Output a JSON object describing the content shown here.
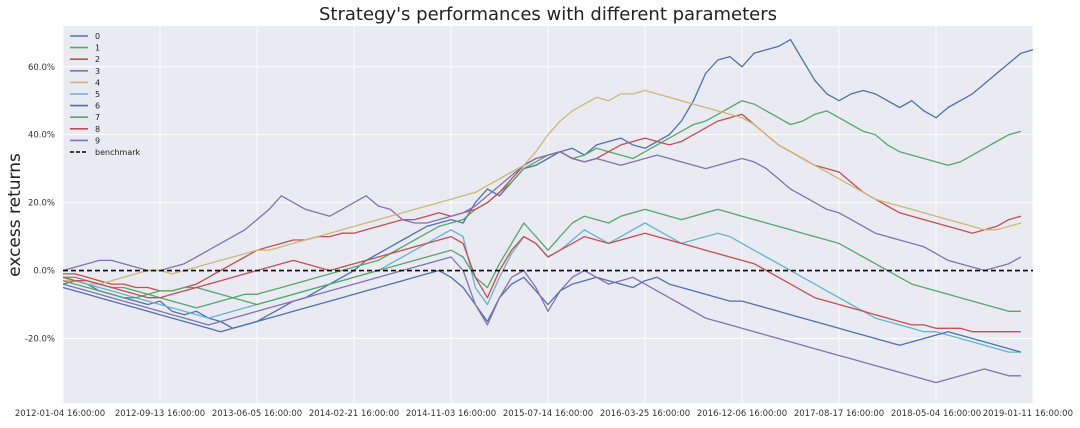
{
  "chart_data": {
    "type": "line",
    "title": "Strategy's performances with different parameters",
    "xlabel": "",
    "ylabel": "excess returns",
    "ylim": [
      -39,
      72
    ],
    "y_ticks": [
      -20,
      0,
      20,
      40,
      60
    ],
    "y_tick_labels": [
      "-20.0%",
      "0.0%",
      "20.0%",
      "40.0%",
      "60.0%"
    ],
    "x_count": 80,
    "x_ticks": [
      {
        "index": 0,
        "label": "2012-01-04 16:00:00"
      },
      {
        "index": 8,
        "label": "2012-09-13 16:00:00"
      },
      {
        "index": 16,
        "label": "2013-06-05 16:00:00"
      },
      {
        "index": 24,
        "label": "2014-02-21 16:00:00"
      },
      {
        "index": 32,
        "label": "2014-11-03 16:00:00"
      },
      {
        "index": 40,
        "label": "2015-07-14 16:00:00"
      },
      {
        "index": 48,
        "label": "2016-03-25 16:00:00"
      },
      {
        "index": 56,
        "label": "2016-12-06 16:00:00"
      },
      {
        "index": 64,
        "label": "2017-08-17 16:00:00"
      },
      {
        "index": 72,
        "label": "2018-05-04 16:00:00"
      },
      {
        "index": 80,
        "label": "2019-01-11 16:00:00"
      }
    ],
    "grid": true,
    "legend_position": "top-left",
    "series": [
      {
        "name": "0",
        "color": "#4c72b0",
        "values": [
          -4,
          -3,
          -4,
          -6,
          -7,
          -8,
          -9,
          -10,
          -9,
          -12,
          -13,
          -12,
          -14,
          -15,
          -17,
          -16,
          -15,
          -13,
          -11,
          -9,
          -8,
          -6,
          -4,
          -2,
          0,
          3,
          5,
          7,
          9,
          11,
          13,
          14,
          15,
          14,
          20,
          24,
          22,
          26,
          30,
          31,
          33,
          35,
          36,
          34,
          37,
          38,
          39,
          37,
          36,
          38,
          40,
          44,
          50,
          58,
          62,
          63,
          60,
          64,
          65,
          66,
          68,
          62,
          56,
          52,
          50,
          52,
          53,
          52,
          50,
          48,
          50,
          47,
          45,
          48,
          50,
          52,
          55,
          58,
          61,
          64,
          65
        ]
      },
      {
        "name": "1",
        "color": "#55a868",
        "values": [
          -2,
          -2,
          -3,
          -4,
          -5,
          -5,
          -6,
          -7,
          -8,
          -9,
          -10,
          -11,
          -10,
          -9,
          -8,
          -7,
          -7,
          -6,
          -5,
          -4,
          -3,
          -2,
          -1,
          0,
          1,
          2,
          3,
          5,
          7,
          9,
          11,
          13,
          14,
          15,
          18,
          20,
          23,
          26,
          30,
          32,
          34,
          35,
          33,
          34,
          36,
          35,
          34,
          33,
          35,
          37,
          39,
          41,
          43,
          44,
          46,
          48,
          50,
          49,
          47,
          45,
          43,
          44,
          46,
          47,
          45,
          43,
          41,
          40,
          37,
          35,
          34,
          33,
          32,
          31,
          32,
          34,
          36,
          38,
          40,
          41
        ]
      },
      {
        "name": "2",
        "color": "#c44e52",
        "values": [
          -1,
          -1,
          -2,
          -3,
          -4,
          -4,
          -5,
          -5,
          -6,
          -6,
          -5,
          -4,
          -2,
          0,
          2,
          4,
          6,
          7,
          8,
          9,
          9,
          10,
          10,
          11,
          11,
          12,
          13,
          14,
          15,
          15,
          16,
          17,
          16,
          17,
          18,
          20,
          23,
          27,
          31,
          33,
          34,
          35,
          33,
          32,
          33,
          35,
          37,
          38,
          39,
          38,
          37,
          38,
          40,
          42,
          44,
          45,
          46,
          43,
          40,
          37,
          35,
          33,
          31,
          30,
          29,
          26,
          23,
          21,
          19,
          17,
          16,
          15,
          14,
          13,
          12,
          11,
          12,
          13,
          15,
          16
        ]
      },
      {
        "name": "3",
        "color": "#8172b2",
        "values": [
          0,
          1,
          2,
          3,
          3,
          2,
          1,
          0,
          0,
          1,
          2,
          4,
          6,
          8,
          10,
          12,
          15,
          18,
          22,
          20,
          18,
          17,
          16,
          18,
          20,
          22,
          19,
          18,
          15,
          14,
          14,
          15,
          16,
          17,
          19,
          22,
          25,
          28,
          31,
          33,
          34,
          35,
          33,
          32,
          33,
          32,
          31,
          32,
          33,
          34,
          33,
          32,
          31,
          30,
          31,
          32,
          33,
          32,
          30,
          27,
          24,
          22,
          20,
          18,
          17,
          15,
          13,
          11,
          10,
          9,
          8,
          7,
          5,
          3,
          2,
          1,
          0,
          1,
          2,
          4
        ]
      },
      {
        "name": "4",
        "color": "#ccb974",
        "values": [
          -3,
          -3,
          -4,
          -4,
          -3,
          -2,
          -1,
          0,
          0,
          -1,
          0,
          1,
          2,
          3,
          4,
          5,
          6,
          6,
          7,
          8,
          9,
          10,
          11,
          12,
          13,
          14,
          15,
          16,
          17,
          18,
          19,
          20,
          21,
          22,
          23,
          25,
          27,
          29,
          31,
          35,
          40,
          44,
          47,
          49,
          51,
          50,
          52,
          52,
          53,
          52,
          51,
          50,
          49,
          48,
          47,
          46,
          45,
          43,
          40,
          37,
          35,
          33,
          31,
          29,
          27,
          25,
          23,
          21,
          20,
          19,
          18,
          17,
          16,
          15,
          14,
          13,
          12,
          12,
          13,
          14
        ]
      },
      {
        "name": "5",
        "color": "#64b5cd",
        "values": [
          -2,
          -3,
          -4,
          -5,
          -6,
          -7,
          -8,
          -9,
          -10,
          -11,
          -12,
          -13,
          -14,
          -13,
          -12,
          -11,
          -10,
          -9,
          -8,
          -7,
          -6,
          -5,
          -4,
          -3,
          -2,
          -1,
          0,
          2,
          4,
          6,
          8,
          10,
          12,
          10,
          -5,
          -10,
          -2,
          5,
          10,
          8,
          4,
          6,
          9,
          12,
          10,
          8,
          10,
          12,
          14,
          12,
          10,
          8,
          9,
          10,
          11,
          10,
          8,
          6,
          4,
          2,
          0,
          -2,
          -4,
          -6,
          -8,
          -10,
          -12,
          -14,
          -15,
          -16,
          -17,
          -18,
          -18,
          -19,
          -20,
          -21,
          -22,
          -23,
          -24,
          -24
        ]
      },
      {
        "name": "6",
        "color": "#4c72b0",
        "values": [
          -5,
          -6,
          -7,
          -8,
          -9,
          -10,
          -11,
          -12,
          -13,
          -14,
          -15,
          -16,
          -17,
          -18,
          -17,
          -16,
          -15,
          -14,
          -13,
          -12,
          -11,
          -10,
          -9,
          -8,
          -7,
          -6,
          -5,
          -4,
          -3,
          -2,
          -1,
          0,
          -2,
          -5,
          -10,
          -15,
          -8,
          -4,
          -2,
          -6,
          -10,
          -6,
          -4,
          -3,
          -2,
          -3,
          -4,
          -5,
          -3,
          -2,
          -4,
          -5,
          -6,
          -7,
          -8,
          -9,
          -9,
          -10,
          -11,
          -12,
          -13,
          -14,
          -15,
          -16,
          -17,
          -18,
          -19,
          -20,
          -21,
          -22,
          -21,
          -20,
          -19,
          -18,
          -19,
          -20,
          -21,
          -22,
          -23,
          -24
        ]
      },
      {
        "name": "7",
        "color": "#55a868",
        "values": [
          -3,
          -4,
          -5,
          -6,
          -7,
          -8,
          -8,
          -7,
          -6,
          -6,
          -5,
          -5,
          -6,
          -7,
          -8,
          -9,
          -10,
          -9,
          -8,
          -7,
          -6,
          -5,
          -4,
          -3,
          -2,
          -1,
          0,
          1,
          2,
          3,
          4,
          5,
          6,
          4,
          -2,
          -5,
          2,
          8,
          14,
          10,
          6,
          10,
          14,
          16,
          15,
          14,
          16,
          17,
          18,
          17,
          16,
          15,
          16,
          17,
          18,
          17,
          16,
          15,
          14,
          13,
          12,
          11,
          10,
          9,
          8,
          6,
          4,
          2,
          0,
          -2,
          -4,
          -5,
          -6,
          -7,
          -8,
          -9,
          -10,
          -11,
          -12,
          -12
        ]
      },
      {
        "name": "8",
        "color": "#c44e52",
        "values": [
          -2,
          -3,
          -3,
          -4,
          -5,
          -6,
          -7,
          -8,
          -8,
          -7,
          -6,
          -5,
          -4,
          -3,
          -2,
          -1,
          0,
          1,
          2,
          3,
          2,
          1,
          0,
          1,
          2,
          3,
          4,
          5,
          6,
          7,
          8,
          9,
          10,
          8,
          -2,
          -8,
          0,
          6,
          10,
          8,
          4,
          6,
          8,
          10,
          9,
          8,
          9,
          10,
          11,
          10,
          9,
          8,
          7,
          6,
          5,
          4,
          3,
          2,
          0,
          -2,
          -4,
          -6,
          -8,
          -9,
          -10,
          -11,
          -12,
          -13,
          -14,
          -15,
          -16,
          -16,
          -17,
          -17,
          -17,
          -18,
          -18,
          -18,
          -18,
          -18
        ]
      },
      {
        "name": "9",
        "color": "#8172b2",
        "values": [
          -4,
          -5,
          -6,
          -7,
          -8,
          -9,
          -10,
          -11,
          -12,
          -13,
          -14,
          -15,
          -16,
          -15,
          -14,
          -13,
          -12,
          -11,
          -10,
          -9,
          -8,
          -7,
          -6,
          -5,
          -4,
          -3,
          -2,
          -1,
          0,
          1,
          2,
          3,
          4,
          0,
          -10,
          -16,
          -8,
          -2,
          0,
          -5,
          -12,
          -6,
          -2,
          0,
          -2,
          -4,
          -3,
          -2,
          -4,
          -6,
          -8,
          -10,
          -12,
          -14,
          -15,
          -16,
          -17,
          -18,
          -19,
          -20,
          -21,
          -22,
          -23,
          -24,
          -25,
          -26,
          -27,
          -28,
          -29,
          -30,
          -31,
          -32,
          -33,
          -32,
          -31,
          -30,
          -29,
          -30,
          -31,
          -31
        ]
      }
    ],
    "benchmark": {
      "name": "benchmark",
      "value": 0,
      "color": "#000000"
    }
  }
}
